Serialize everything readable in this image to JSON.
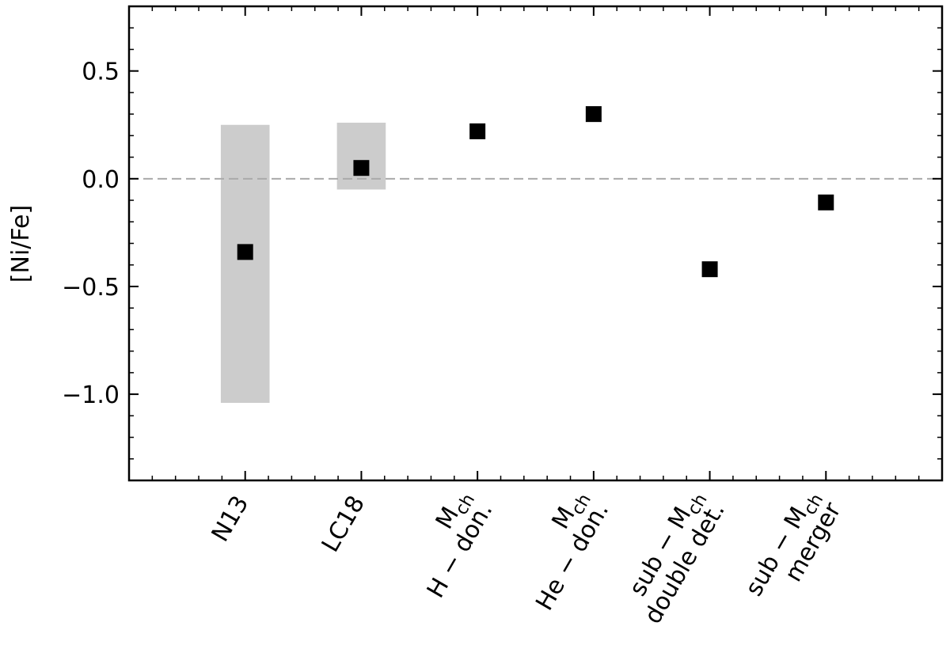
{
  "chart_data": {
    "type": "scatter",
    "ylabel": "[Ni/Fe]",
    "categories": [
      [
        "N13"
      ],
      [
        "LC18"
      ],
      [
        [
          "M",
          "ch"
        ],
        "H − don."
      ],
      [
        [
          "M",
          "ch"
        ],
        "He − don."
      ],
      [
        [
          "sub − M",
          "ch"
        ],
        "double det."
      ],
      [
        [
          "sub − M",
          "ch"
        ],
        "merger"
      ]
    ],
    "x": [
      0,
      1,
      2,
      3,
      4,
      5
    ],
    "values": [
      -0.34,
      0.05,
      0.22,
      0.3,
      -0.42,
      -0.11
    ],
    "ranges": [
      [
        0.25,
        -1.04
      ],
      [
        0.26,
        -0.05
      ],
      null,
      null,
      null,
      null
    ],
    "color": "#000000",
    "range_color": "#cccccc",
    "hline": 0,
    "xlim": [
      -1,
      6
    ],
    "ylim": [
      -1.4,
      0.8
    ],
    "yticks": [
      {
        "value": -1.0,
        "label": "−1.0"
      },
      {
        "value": -0.5,
        "label": "−0.5"
      },
      {
        "value": 0.0,
        "label": "0.0"
      },
      0.5
    ]
  }
}
